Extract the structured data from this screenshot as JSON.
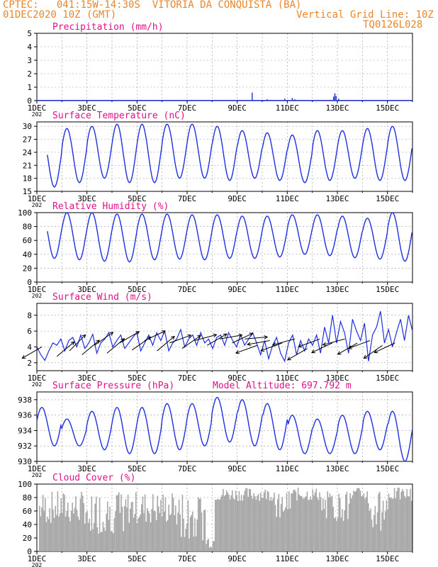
{
  "header": {
    "line1": "CPTEC:   041:15W-14:30S  VITORIA DA CONQUISTA (BA)",
    "line2": "01DEC2020 10Z (GMT)",
    "grid_note": "Vertical Grid Line: 10Z",
    "code": "TQ0126L028"
  },
  "colors": {
    "header": "#e8862a",
    "title": "#e0108a",
    "series": "#1f2fe0",
    "cloud": "#a8a8a8",
    "arrows": "#000000"
  },
  "x_ticks": [
    "1DEC",
    "3DEC",
    "5DEC",
    "7DEC",
    "9DEC",
    "11DEC",
    "13DEC",
    "15DEC"
  ],
  "x_tick_fragment": "202",
  "chart_data": [
    {
      "type": "bar",
      "title": "Precipitation (mm/h)",
      "ylim": [
        0,
        5
      ],
      "yticks": [
        0,
        1,
        2,
        3,
        4,
        5
      ],
      "x_days": [
        9.6,
        10.2,
        10.9,
        11.2,
        11.3,
        12.85,
        12.9,
        12.95,
        13.05
      ],
      "values": [
        0.6,
        0.1,
        0.15,
        0.2,
        0.1,
        0.3,
        0.55,
        0.35,
        0.15
      ]
    },
    {
      "type": "line",
      "title": "Surface Temperature (nC)",
      "ylim": [
        15,
        31
      ],
      "yticks": [
        15,
        18,
        21,
        24,
        27,
        30
      ],
      "daily_max": [
        28.5,
        29.5,
        30,
        30.5,
        30.5,
        30.5,
        30.5,
        30,
        29,
        28.5,
        28,
        29,
        29,
        29.5,
        30
      ],
      "daily_min": [
        16,
        17,
        18,
        17,
        17,
        18,
        18,
        17.5,
        18,
        17.5,
        17,
        17.5,
        18,
        17.5,
        17.5
      ],
      "x_start": 1.42,
      "x_end": 16.0
    },
    {
      "type": "line",
      "title": "Relative Humidity (%)",
      "ylim": [
        0,
        100
      ],
      "yticks": [
        0,
        20,
        40,
        60,
        80,
        100
      ],
      "daily_max": [
        100,
        100,
        100,
        98,
        98,
        98,
        97,
        97,
        95,
        95,
        97,
        97,
        95,
        92,
        100
      ],
      "daily_min": [
        34,
        32,
        30,
        29,
        32,
        33,
        32,
        34,
        34,
        36,
        40,
        38,
        35,
        33,
        30
      ],
      "x_start": 1.42,
      "x_end": 16.0
    },
    {
      "type": "line",
      "title": "Surface Wind (m/s)",
      "ylim": [
        1,
        9.5
      ],
      "yticks": [
        2,
        4,
        6,
        8
      ],
      "speed": [
        4.0,
        3.0,
        2.3,
        3.5,
        4.5,
        4.2,
        5.0,
        3.5,
        4.8,
        5.2,
        4.0,
        5.5,
        3.8,
        4.5,
        5.6,
        3.2,
        4.5,
        5.0,
        5.8,
        4.0,
        4.8,
        5.5,
        3.8,
        4.5,
        5.2,
        5.8,
        3.5,
        4.5,
        5.5,
        4.2,
        5.8,
        4.8,
        6.0,
        3.5,
        4.5,
        5.0,
        6.2,
        4.0,
        5.0,
        5.5,
        4.2,
        5.8,
        4.5,
        5.0,
        3.8,
        5.2,
        5.5,
        4.2,
        5.8,
        4.8,
        4.0,
        5.5,
        4.2,
        5.0,
        5.8,
        4.5,
        3.0,
        4.8,
        2.5,
        4.2,
        5.2,
        3.2,
        2.2,
        4.5,
        5.5,
        3.0,
        4.8,
        3.5,
        5.0,
        4.2,
        5.5,
        3.2,
        6.5,
        4.5,
        8.0,
        4.5,
        7.2,
        5.8,
        3.2,
        7.5,
        6.0,
        4.8,
        7.0,
        2.2,
        5.5,
        6.5,
        8.5,
        4.5,
        6.2,
        4.0,
        5.8,
        7.5,
        4.8,
        8.0,
        6.0
      ],
      "arrows_x_days": [
        1.2,
        1.8,
        2.3,
        2.8,
        3.3,
        3.8,
        4.3,
        4.8,
        5.3,
        5.8,
        6.3,
        6.8,
        7.3,
        7.8,
        8.3,
        8.8,
        9.3,
        9.8,
        10.3,
        10.8,
        11.3,
        11.8,
        12.3,
        12.8,
        13.3,
        13.8,
        14.3,
        14.8,
        15.3
      ],
      "arrows_speed": [
        4.0,
        2.8,
        3.5,
        3.0,
        4.2,
        3.2,
        4.5,
        3.6,
        4.8,
        3.5,
        4.5,
        3.8,
        4.8,
        4.2,
        5.0,
        4.5,
        5.0,
        4.2,
        4.8,
        4.5,
        5.0,
        3.8,
        5.0,
        4.5,
        5.0,
        4.5,
        4.8,
        4.2,
        4.5
      ],
      "arrows_angle_deg": [
        210,
        40,
        45,
        40,
        35,
        40,
        30,
        35,
        25,
        40,
        20,
        35,
        15,
        30,
        10,
        25,
        5,
        200,
        190,
        200,
        195,
        210,
        200,
        205,
        195,
        210,
        200,
        215,
        205
      ]
    },
    {
      "type": "line",
      "title": "Surface Pressure (hPa)",
      "annotation": "Model Altitude: 697.792 m",
      "ylim": [
        930,
        939
      ],
      "yticks": [
        930,
        932,
        934,
        936,
        938
      ],
      "daily_max": [
        937,
        935.5,
        936.5,
        937,
        937,
        937.5,
        937.5,
        938.3,
        938,
        937.5,
        936,
        935.5,
        936,
        936.5,
        936.5
      ],
      "daily_min": [
        932,
        932,
        931.5,
        931,
        931,
        931.5,
        932,
        932.5,
        932,
        931.5,
        931,
        931,
        931,
        931.5,
        930
      ],
      "x_start": 1.0,
      "x_end": 16.0
    },
    {
      "type": "area",
      "title": "Cloud Cover (%)",
      "ylim": [
        0,
        100
      ],
      "yticks": [
        0,
        20,
        40,
        60,
        80,
        100
      ]
    }
  ]
}
